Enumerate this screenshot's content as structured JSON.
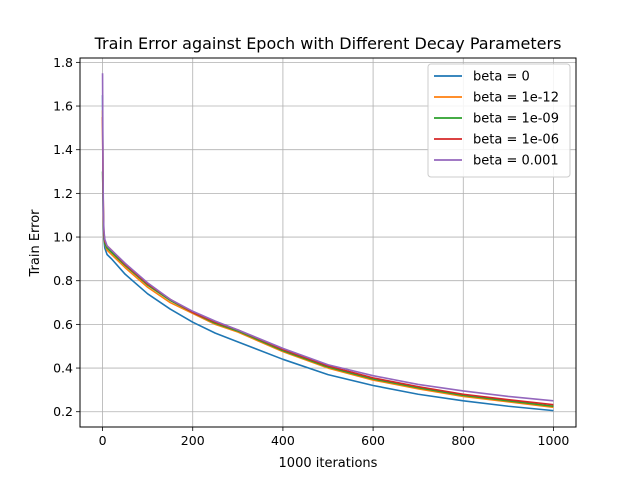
{
  "chart_data": {
    "type": "line",
    "title": "Train Error against Epoch with Different Decay Parameters",
    "xlabel": "1000 iterations",
    "ylabel": "Train Error",
    "xlim": [
      -50,
      1050
    ],
    "ylim": [
      0.13,
      1.82
    ],
    "xticks": [
      0,
      200,
      400,
      600,
      800,
      1000
    ],
    "yticks": [
      0.2,
      0.4,
      0.6,
      0.8,
      1.0,
      1.2,
      1.4,
      1.6,
      1.8
    ],
    "xtick_labels": [
      "0",
      "200",
      "400",
      "600",
      "800",
      "1000"
    ],
    "ytick_labels": [
      "0.2",
      "0.4",
      "0.6",
      "0.8",
      "1.0",
      "1.2",
      "1.4",
      "1.6",
      "1.8"
    ],
    "grid": true,
    "legend_position": "top-right",
    "x": [
      0,
      1,
      2,
      3,
      5,
      10,
      20,
      50,
      100,
      150,
      200,
      250,
      300,
      400,
      500,
      600,
      700,
      800,
      900,
      1000
    ],
    "series": [
      {
        "name": "beta = 0",
        "color": "#1f77b4",
        "values": [
          1.65,
          1.2,
          1.05,
          0.99,
          0.95,
          0.92,
          0.9,
          0.83,
          0.74,
          0.67,
          0.61,
          0.56,
          0.52,
          0.44,
          0.37,
          0.32,
          0.28,
          0.25,
          0.225,
          0.205
        ]
      },
      {
        "name": "beta = 1e-12",
        "color": "#ff7f0e",
        "values": [
          1.58,
          1.25,
          1.08,
          1.01,
          0.97,
          0.94,
          0.92,
          0.86,
          0.77,
          0.7,
          0.65,
          0.6,
          0.565,
          0.475,
          0.4,
          0.345,
          0.305,
          0.27,
          0.245,
          0.22
        ]
      },
      {
        "name": "beta = 1e-09",
        "color": "#2ca02c",
        "values": [
          1.3,
          1.2,
          1.07,
          1.01,
          0.97,
          0.95,
          0.93,
          0.87,
          0.78,
          0.71,
          0.655,
          0.605,
          0.57,
          0.48,
          0.405,
          0.35,
          0.31,
          0.275,
          0.25,
          0.225
        ]
      },
      {
        "name": "beta = 1e-06",
        "color": "#d62728",
        "values": [
          1.55,
          1.25,
          1.09,
          1.02,
          0.98,
          0.96,
          0.94,
          0.875,
          0.785,
          0.715,
          0.655,
          0.61,
          0.575,
          0.485,
          0.41,
          0.355,
          0.315,
          0.28,
          0.255,
          0.232
        ]
      },
      {
        "name": "beta = 0.001",
        "color": "#9467bd",
        "values": [
          1.75,
          1.3,
          1.1,
          1.03,
          0.99,
          0.96,
          0.94,
          0.88,
          0.79,
          0.715,
          0.66,
          0.615,
          0.575,
          0.49,
          0.415,
          0.365,
          0.325,
          0.295,
          0.27,
          0.25
        ]
      }
    ]
  }
}
